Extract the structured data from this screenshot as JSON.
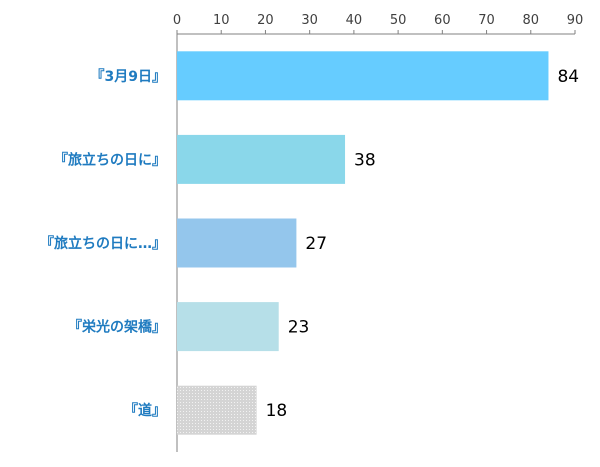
{
  "chart_data": {
    "type": "bar",
    "orientation": "horizontal",
    "categories": [
      "『3月9日』",
      "『旅立ちの日に』",
      "『旅立ちの日に…』",
      "『栄光の架橋』",
      "『道』"
    ],
    "values": [
      84,
      38,
      27,
      23,
      18
    ],
    "colors": [
      "#66ccff",
      "#8ad7ea",
      "#94c6ec",
      "#b6dfe8",
      "#d9d9d9"
    ],
    "xaxis": {
      "position": "top",
      "ticks": [
        0,
        10,
        20,
        30,
        40,
        50,
        60,
        70,
        80,
        90
      ],
      "xlim": [
        0,
        90
      ]
    },
    "data_labels": [
      "84",
      "38",
      "27",
      "23",
      "18"
    ],
    "grid": false,
    "legend": "none"
  }
}
